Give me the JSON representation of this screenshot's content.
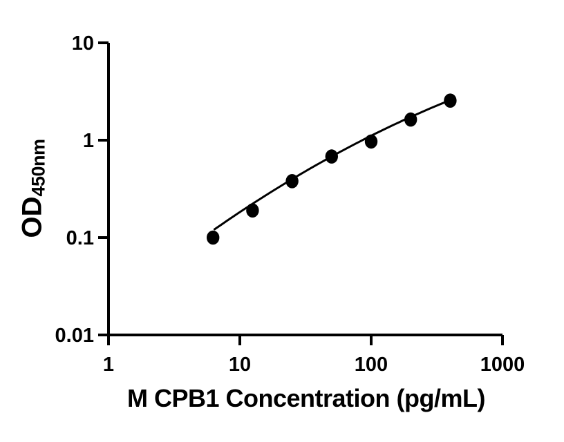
{
  "chart_data": {
    "type": "scatter",
    "title": "",
    "xlabel": "M CPB1 Concentration (pg/mL)",
    "ylabel": "OD",
    "ylabel_sub": "450nm",
    "x": [
      6.25,
      12.5,
      25,
      50,
      100,
      200,
      400
    ],
    "y": [
      0.1,
      0.19,
      0.38,
      0.68,
      0.97,
      1.63,
      2.55
    ],
    "xscale": "log",
    "yscale": "log",
    "xlim": [
      1,
      1000
    ],
    "ylim": [
      0.01,
      10
    ],
    "x_tick_values": [
      1,
      10,
      100,
      1000
    ],
    "x_tick_labels": [
      "1",
      "10",
      "100",
      "1000"
    ],
    "y_tick_values": [
      10,
      1,
      0.1,
      0.01
    ],
    "y_tick_labels": [
      "10",
      "1",
      "0.1",
      "0.01"
    ],
    "grid": false,
    "legend": null,
    "marker_color": "#000000",
    "line_color": "#000000",
    "axis_color": "#000000",
    "background": "#ffffff",
    "trendline": {
      "model": "quadratic_log10",
      "a": -1.7444,
      "b": 1.1163,
      "c": -0.1106,
      "log10_x_start": 0.8076,
      "log10_x_end": 2.601
    }
  }
}
